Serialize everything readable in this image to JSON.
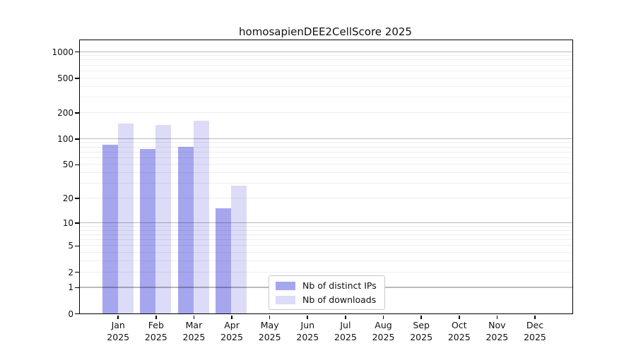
{
  "chart_data": {
    "type": "bar",
    "title": "homosapienDEE2CellScore 2025",
    "year_label": "2025",
    "categories": [
      "Jan",
      "Feb",
      "Mar",
      "Apr",
      "May",
      "Jun",
      "Jul",
      "Aug",
      "Sep",
      "Oct",
      "Nov",
      "Dec"
    ],
    "series": [
      {
        "key": "distinct-ips",
        "name": "Nb of distinct IPs",
        "color": "#a6a6ef",
        "values": [
          84,
          76,
          80,
          15,
          0,
          0,
          0,
          0,
          0,
          0,
          0,
          0
        ]
      },
      {
        "key": "downloads",
        "name": "Nb of downloads",
        "color": "#dcdcf8",
        "values": [
          150,
          143,
          159,
          28,
          0,
          0,
          0,
          0,
          0,
          0,
          0,
          0
        ]
      }
    ],
    "yticks": [
      0,
      1,
      2,
      5,
      10,
      20,
      50,
      100,
      200,
      500,
      1000
    ],
    "yscale": "log1p",
    "ylim": [
      0,
      1000
    ],
    "xlabel": "",
    "ylabel": "",
    "grid": true,
    "legend_position": "inside-bottom-center"
  }
}
